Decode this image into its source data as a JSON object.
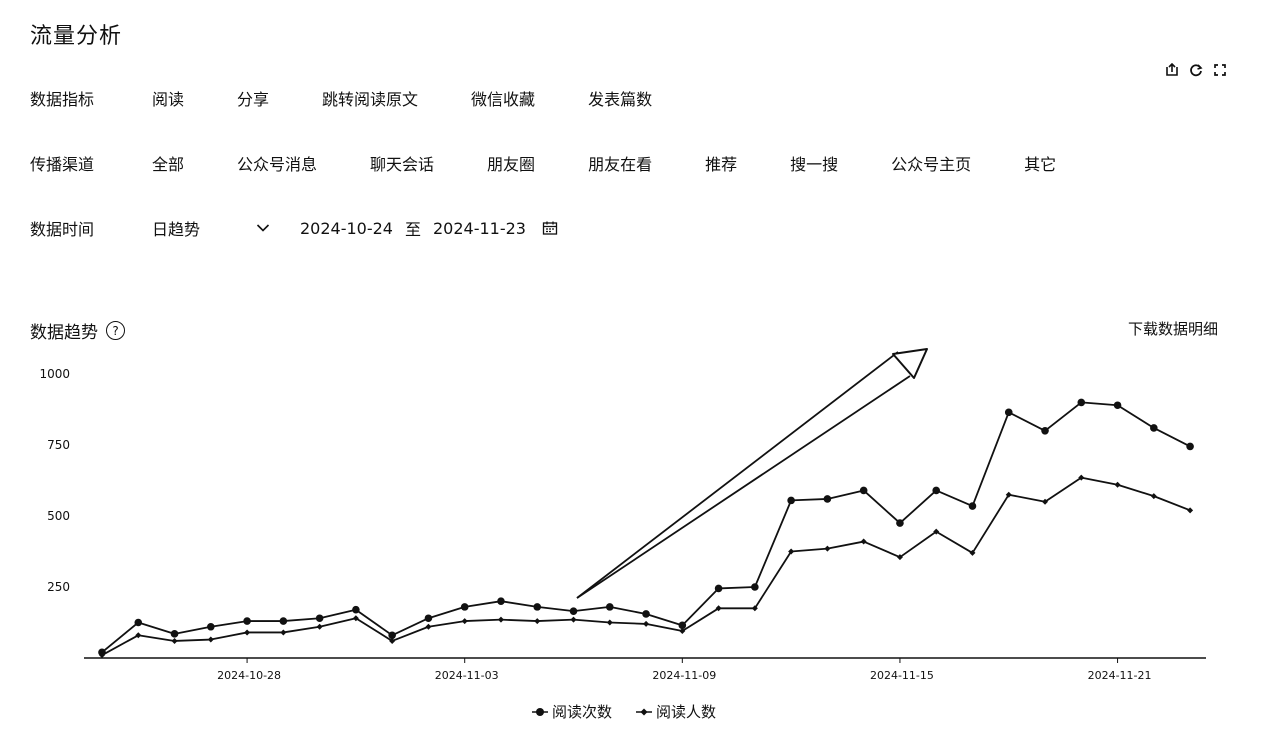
{
  "page": {
    "title": "流量分析"
  },
  "toolbar": {
    "icons": [
      "export-icon",
      "refresh-icon",
      "expand-icon"
    ]
  },
  "filters": {
    "metric": {
      "label": "数据指标",
      "options": [
        "阅读",
        "分享",
        "跳转阅读原文",
        "微信收藏",
        "发表篇数"
      ]
    },
    "channel": {
      "label": "传播渠道",
      "options": [
        "全部",
        "公众号消息",
        "聊天会话",
        "朋友圈",
        "朋友在看",
        "推荐",
        "搜一搜",
        "公众号主页",
        "其它"
      ]
    },
    "time": {
      "label": "数据时间",
      "granularity": "日趋势",
      "start_date": "2024-10-24",
      "separator": "至",
      "end_date": "2024-11-23"
    }
  },
  "trend": {
    "title": "数据趋势",
    "help": "?",
    "download": "下载数据明细"
  },
  "chart_data": {
    "type": "line",
    "x": [
      "2024-10-24",
      "2024-10-25",
      "2024-10-26",
      "2024-10-27",
      "2024-10-28",
      "2024-10-29",
      "2024-10-30",
      "2024-10-31",
      "2024-11-01",
      "2024-11-02",
      "2024-11-03",
      "2024-11-04",
      "2024-11-05",
      "2024-11-06",
      "2024-11-07",
      "2024-11-08",
      "2024-11-09",
      "2024-11-10",
      "2024-11-11",
      "2024-11-12",
      "2024-11-13",
      "2024-11-14",
      "2024-11-15",
      "2024-11-16",
      "2024-11-17",
      "2024-11-18",
      "2024-11-19",
      "2024-11-20",
      "2024-11-21",
      "2024-11-22",
      "2024-11-23"
    ],
    "x_tick_labels": [
      "2024-10-28",
      "2024-11-03",
      "2024-11-09",
      "2024-11-15",
      "2024-11-21"
    ],
    "y_ticks": [
      250,
      500,
      750,
      1000
    ],
    "ylim": [
      0,
      1000
    ],
    "series": [
      {
        "name": "阅读次数",
        "marker": "circle",
        "values": [
          20,
          125,
          85,
          110,
          130,
          130,
          140,
          170,
          80,
          140,
          180,
          200,
          180,
          165,
          180,
          155,
          115,
          245,
          250,
          555,
          560,
          590,
          475,
          590,
          535,
          865,
          800,
          900,
          890,
          810,
          745
        ]
      },
      {
        "name": "阅读人数",
        "marker": "diamond",
        "values": [
          10,
          80,
          60,
          65,
          90,
          90,
          110,
          140,
          60,
          110,
          130,
          135,
          130,
          135,
          125,
          120,
          95,
          175,
          175,
          375,
          385,
          410,
          355,
          445,
          370,
          575,
          550,
          635,
          610,
          570,
          520
        ]
      }
    ],
    "annotation": "arrow",
    "legend_position": "bottom-center"
  }
}
